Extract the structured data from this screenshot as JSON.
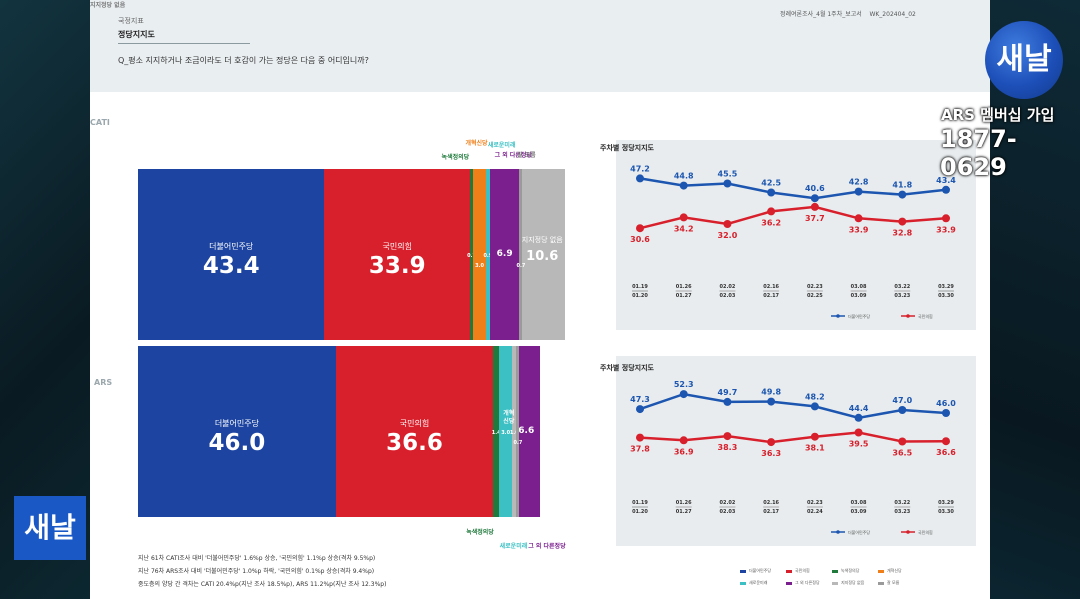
{
  "header": {
    "subtitle": "국정지표",
    "title": "정당지지도",
    "report": "정례여론조사_4월 1주차_보고서",
    "code": "WK_202404_02",
    "question": "Q_평소 지지하거나 조금이라도 더 호감이 가는 정당은 다음 중 어디입니까?"
  },
  "broadcast": {
    "logo_text": "새날",
    "ars_line1": "ARS 멤버십 가입",
    "ars_line2": "1877-0629"
  },
  "footer": {
    "line1": "지난 61차 CATI조사 대비 '더불어민주당' 1.6%p 상승, '국민의힘' 1.1%p 상승(격차 9.5%p)",
    "line2": "지난 76차 ARS조사 대비 '더불어민주당' 1.0%p 하락, '국민의힘' 0.1%p 상승(격차 9.4%p)",
    "line3": "중도층의 양당 간 격차는 CATI 20.4%p(지난 조사 18.5%p), ARS 11.2%p(지난 조사 12.3%p)"
  },
  "chart_data": [
    {
      "type": "bar",
      "section": "CATI",
      "stacked": true,
      "categories": [
        "더불어민주당",
        "국민의힘",
        "녹색정의당",
        "개혁신당",
        "새로운미래",
        "그 외 다른정당",
        "지지정당 없음",
        "잘 모름"
      ],
      "display_labels": [
        "더불어민주당",
        "국민의힘",
        "녹색정의당",
        "개혁신당",
        "새로운미래",
        "그 외 다른정당",
        "지지정당 없음",
        "잘 모름"
      ],
      "values": [
        43.4,
        33.9,
        0.7,
        3.0,
        0.9,
        6.9,
        10.6,
        0.7
      ],
      "colors": [
        "#1c44a0",
        "#d8202c",
        "#1f7a3c",
        "#f07f1a",
        "#3cc0c4",
        "#7b1f8f",
        "#b8b8b8",
        "#9a9a9a"
      ]
    },
    {
      "type": "bar",
      "section": "ARS",
      "stacked": true,
      "categories": [
        "더불어민주당",
        "국민의힘",
        "녹색정의당",
        "개혁신당",
        "새로운미래",
        "그 외 다른정당",
        "지지정당 없음",
        "잘 모름"
      ],
      "display_labels": [
        "더불어민주당",
        "국민의힘",
        "녹색정의당",
        "개혁 신당",
        "새로운미래",
        "그 외 다른정당",
        "",
        ""
      ],
      "values": [
        46.0,
        36.6,
        1.4,
        4.7,
        3.0,
        6.6,
        1.0,
        0.7
      ],
      "colors": [
        "#1c44a0",
        "#d8202c",
        "#1f7a3c",
        "#f07f1a",
        "#3cc0c4",
        "#7b1f8f",
        "#b8b8b8",
        "#9a9a9a"
      ]
    },
    {
      "type": "line",
      "section": "CATI",
      "title": "주차별 정당지지도",
      "x": [
        "01.19 01.20",
        "01.26 01.27",
        "02.02 02.03",
        "02.16 02.17",
        "02.23 02.25",
        "03.08 03.09",
        "03.22 03.23",
        "03.29 03.30"
      ],
      "series": [
        {
          "name": "더불어민주당",
          "values": [
            47.2,
            44.8,
            45.5,
            42.5,
            40.6,
            42.8,
            41.8,
            43.4
          ],
          "color": "#1c56b0"
        },
        {
          "name": "국민의힘",
          "values": [
            30.6,
            34.2,
            32.0,
            36.2,
            37.7,
            33.9,
            32.8,
            33.9
          ],
          "color": "#d8202c"
        }
      ],
      "ylim": [
        20,
        55
      ],
      "legend": "bottom-right"
    },
    {
      "type": "line",
      "section": "ARS",
      "title": "주차별 정당지지도",
      "x": [
        "01.19 01.20",
        "01.26 01.27",
        "02.02 02.03",
        "02.16 02.17",
        "02.23 02.24",
        "03.08 03.09",
        "03.22 03.23",
        "03.29 03.30"
      ],
      "series": [
        {
          "name": "더불어민주당",
          "values": [
            47.3,
            52.3,
            49.7,
            49.8,
            48.2,
            44.4,
            47.0,
            46.0
          ],
          "color": "#1c56b0"
        },
        {
          "name": "국민의힘",
          "values": [
            37.8,
            36.9,
            38.3,
            36.3,
            38.1,
            39.5,
            36.5,
            36.6
          ],
          "color": "#d8202c"
        }
      ],
      "ylim": [
        25,
        60
      ],
      "legend": "bottom-right"
    }
  ],
  "legend_bottom": [
    {
      "name": "더불어민주당",
      "color": "#1c44a0"
    },
    {
      "name": "국민의힘",
      "color": "#d8202c"
    },
    {
      "name": "녹색정의당",
      "color": "#1f7a3c"
    },
    {
      "name": "개혁신당",
      "color": "#f07f1a"
    },
    {
      "name": "새로운미래",
      "color": "#3cc0c4"
    },
    {
      "name": "그 외 다른정당",
      "color": "#7b1f8f"
    },
    {
      "name": "지지정당 없음",
      "color": "#b8b8b8"
    },
    {
      "name": "잘 모름",
      "color": "#9a9a9a"
    }
  ]
}
